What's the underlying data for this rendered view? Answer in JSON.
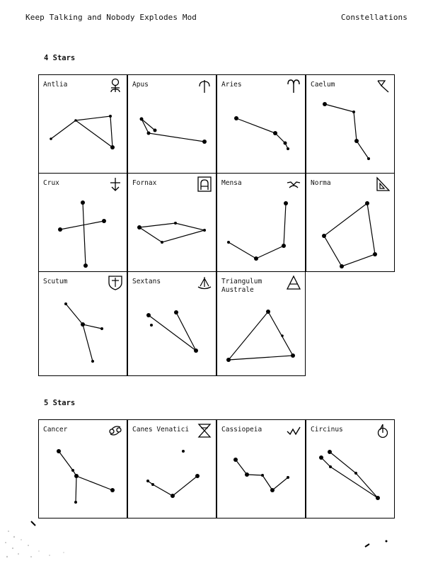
{
  "header": {
    "left": "Keep Talking and Nobody Explodes Mod",
    "right": "Constellations"
  },
  "sections": [
    {
      "title": "4 Stars",
      "constellations": [
        {
          "name": "Antlia",
          "symbol": "antlia-symbol-icon"
        },
        {
          "name": "Apus",
          "symbol": "apus-symbol-icon"
        },
        {
          "name": "Aries",
          "symbol": "aries-symbol-icon"
        },
        {
          "name": "Caelum",
          "symbol": "caelum-symbol-icon"
        },
        {
          "name": "Crux",
          "symbol": "crux-symbol-icon"
        },
        {
          "name": "Fornax",
          "symbol": "fornax-symbol-icon"
        },
        {
          "name": "Mensa",
          "symbol": "mensa-symbol-icon"
        },
        {
          "name": "Norma",
          "symbol": "norma-symbol-icon"
        },
        {
          "name": "Scutum",
          "symbol": "scutum-symbol-icon"
        },
        {
          "name": "Sextans",
          "symbol": "sextans-symbol-icon"
        },
        {
          "name": "Triangulum\nAustrale",
          "symbol": "triangulum-australe-symbol-icon"
        }
      ]
    },
    {
      "title": "5 Stars",
      "constellations": [
        {
          "name": "Cancer",
          "symbol": "cancer-symbol-icon"
        },
        {
          "name": "Canes Venatici",
          "symbol": "canes-venatici-symbol-icon"
        },
        {
          "name": "Cassiopeia",
          "symbol": "cassiopeia-symbol-icon"
        },
        {
          "name": "Circinus",
          "symbol": "circinus-symbol-icon"
        }
      ]
    }
  ]
}
